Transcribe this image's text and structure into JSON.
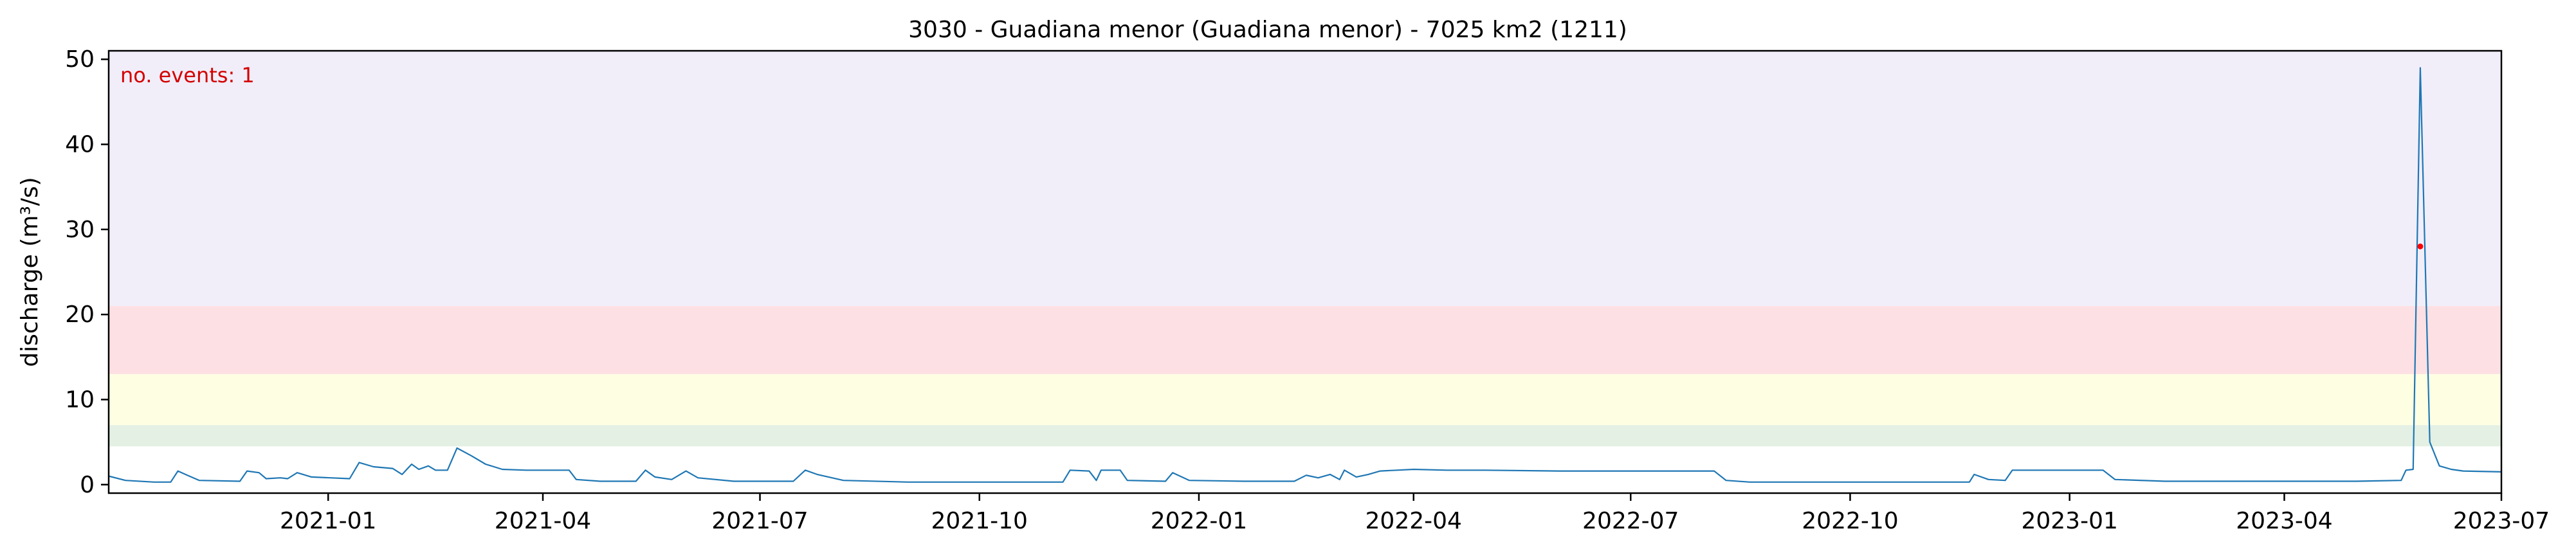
{
  "chart_data": {
    "type": "line",
    "title": "3030 - Guadiana menor (Guadiana menor) - 7025 km2 (1211)",
    "xlabel": "",
    "ylabel": "discharge (m³/s)",
    "xlim": [
      "2020-10-01",
      "2023-07-01"
    ],
    "ylim": [
      -1,
      51
    ],
    "grid": false,
    "x_ticks": [
      "2021-01",
      "2021-04",
      "2021-07",
      "2021-10",
      "2022-01",
      "2022-04",
      "2022-07",
      "2022-10",
      "2023-01",
      "2023-04",
      "2023-07"
    ],
    "y_ticks": [
      0,
      10,
      20,
      30,
      40,
      50
    ],
    "annotation": {
      "text": "no. events: 1",
      "color": "#d40000"
    },
    "threshold_bands": [
      {
        "from": 4.5,
        "to": 7,
        "color": "#e3f0e3"
      },
      {
        "from": 7,
        "to": 13,
        "color": "#fefee3"
      },
      {
        "from": 13,
        "to": 21,
        "color": "#fde0e3"
      },
      {
        "from": 21,
        "to": 51,
        "color": "#f1eefa"
      }
    ],
    "series": [
      {
        "color": "#1f77b4",
        "points": [
          [
            "2020-10-01",
            1.0
          ],
          [
            "2020-10-08",
            0.5
          ],
          [
            "2020-10-20",
            0.3
          ],
          [
            "2020-10-27",
            0.3
          ],
          [
            "2020-10-30",
            1.6
          ],
          [
            "2020-11-03",
            1.1
          ],
          [
            "2020-11-08",
            0.5
          ],
          [
            "2020-11-25",
            0.4
          ],
          [
            "2020-11-28",
            1.6
          ],
          [
            "2020-12-03",
            1.4
          ],
          [
            "2020-12-06",
            0.7
          ],
          [
            "2020-12-12",
            0.8
          ],
          [
            "2020-12-15",
            0.7
          ],
          [
            "2020-12-19",
            1.4
          ],
          [
            "2020-12-25",
            0.9
          ],
          [
            "2021-01-02",
            0.8
          ],
          [
            "2021-01-10",
            0.7
          ],
          [
            "2021-01-14",
            2.6
          ],
          [
            "2021-01-20",
            2.1
          ],
          [
            "2021-01-28",
            1.9
          ],
          [
            "2021-02-01",
            1.2
          ],
          [
            "2021-02-05",
            2.4
          ],
          [
            "2021-02-08",
            1.8
          ],
          [
            "2021-02-12",
            2.2
          ],
          [
            "2021-02-15",
            1.7
          ],
          [
            "2021-02-20",
            1.7
          ],
          [
            "2021-02-24",
            4.3
          ],
          [
            "2021-03-02",
            3.4
          ],
          [
            "2021-03-08",
            2.4
          ],
          [
            "2021-03-15",
            1.8
          ],
          [
            "2021-03-25",
            1.7
          ],
          [
            "2021-04-12",
            1.7
          ],
          [
            "2021-04-15",
            0.6
          ],
          [
            "2021-04-25",
            0.4
          ],
          [
            "2021-05-10",
            0.4
          ],
          [
            "2021-05-14",
            1.7
          ],
          [
            "2021-05-18",
            0.9
          ],
          [
            "2021-05-25",
            0.6
          ],
          [
            "2021-05-31",
            1.6
          ],
          [
            "2021-06-05",
            0.8
          ],
          [
            "2021-06-20",
            0.4
          ],
          [
            "2021-07-15",
            0.4
          ],
          [
            "2021-07-20",
            1.7
          ],
          [
            "2021-07-25",
            1.2
          ],
          [
            "2021-08-05",
            0.5
          ],
          [
            "2021-09-01",
            0.3
          ],
          [
            "2021-10-01",
            0.3
          ],
          [
            "2021-11-05",
            0.3
          ],
          [
            "2021-11-08",
            1.7
          ],
          [
            "2021-11-16",
            1.6
          ],
          [
            "2021-11-19",
            0.5
          ],
          [
            "2021-11-21",
            1.7
          ],
          [
            "2021-11-29",
            1.7
          ],
          [
            "2021-12-02",
            0.5
          ],
          [
            "2021-12-18",
            0.4
          ],
          [
            "2021-12-21",
            1.4
          ],
          [
            "2021-12-28",
            0.5
          ],
          [
            "2022-01-20",
            0.4
          ],
          [
            "2022-02-10",
            0.4
          ],
          [
            "2022-02-15",
            1.1
          ],
          [
            "2022-02-20",
            0.8
          ],
          [
            "2022-02-25",
            1.2
          ],
          [
            "2022-03-01",
            0.6
          ],
          [
            "2022-03-03",
            1.7
          ],
          [
            "2022-03-08",
            0.9
          ],
          [
            "2022-03-13",
            1.2
          ],
          [
            "2022-03-18",
            1.6
          ],
          [
            "2022-03-25",
            1.7
          ],
          [
            "2022-04-01",
            1.8
          ],
          [
            "2022-04-15",
            1.7
          ],
          [
            "2022-05-01",
            1.7
          ],
          [
            "2022-06-01",
            1.6
          ],
          [
            "2022-07-01",
            1.6
          ],
          [
            "2022-08-05",
            1.6
          ],
          [
            "2022-08-10",
            0.5
          ],
          [
            "2022-08-20",
            0.3
          ],
          [
            "2022-10-01",
            0.3
          ],
          [
            "2022-11-05",
            0.3
          ],
          [
            "2022-11-20",
            0.3
          ],
          [
            "2022-11-22",
            1.2
          ],
          [
            "2022-11-28",
            0.6
          ],
          [
            "2022-12-05",
            0.5
          ],
          [
            "2022-12-08",
            1.7
          ],
          [
            "2022-12-20",
            1.7
          ],
          [
            "2023-01-01",
            1.7
          ],
          [
            "2023-01-15",
            1.7
          ],
          [
            "2023-01-20",
            0.6
          ],
          [
            "2023-02-10",
            0.4
          ],
          [
            "2023-03-01",
            0.4
          ],
          [
            "2023-04-01",
            0.4
          ],
          [
            "2023-05-01",
            0.4
          ],
          [
            "2023-05-20",
            0.5
          ],
          [
            "2023-05-22",
            1.7
          ],
          [
            "2023-05-25",
            1.8
          ],
          [
            "2023-05-28",
            49.0
          ],
          [
            "2023-06-01",
            5.0
          ],
          [
            "2023-06-05",
            2.2
          ],
          [
            "2023-06-10",
            1.8
          ],
          [
            "2023-06-15",
            1.6
          ],
          [
            "2023-07-01",
            1.5
          ]
        ]
      }
    ],
    "event_markers": [
      {
        "x": "2023-05-28",
        "y": 28,
        "color": "#ff0000"
      }
    ]
  }
}
